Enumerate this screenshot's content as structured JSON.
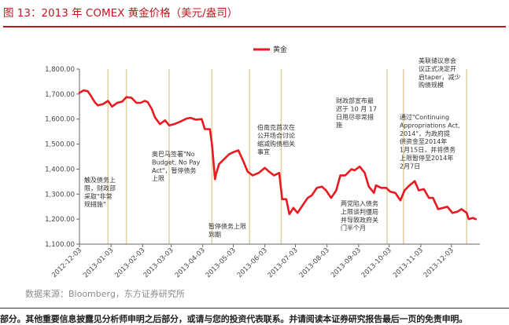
{
  "title": "图 13：2013 年 COMEX 黄金价格（美元/盎司）",
  "source": "数据来源：Bloomberg，东方证券研究所",
  "disclaimer": "部分。其他重要信息披露见分析师申明之后部分，或请与您的投资代表联系。并请阅读本证券研究报告最后一页的免责申明。",
  "colors": {
    "line": "#e8191f",
    "title": "#c0181f",
    "event_line": "#e2d2a8",
    "axis": "#666666"
  },
  "chart_data": {
    "type": "line",
    "title": "",
    "xlabel": "",
    "ylabel": "",
    "ylim": [
      1100,
      1800
    ],
    "yticks": [
      1100,
      1200,
      1300,
      1400,
      1500,
      1600,
      1700,
      1800
    ],
    "ytick_labels": [
      "1,100.00",
      "1,200.00",
      "1,300.00",
      "1,400.00",
      "1,500.00",
      "1,600.00",
      "1,700.00",
      "1,800.00"
    ],
    "xlim": [
      "2012-12-03",
      "2013-12-31"
    ],
    "xticks": [
      "2012-12-03",
      "2013-01-03",
      "2013-02-03",
      "2013-03-03",
      "2013-04-03",
      "2013-05-03",
      "2013-06-03",
      "2013-07-03",
      "2013-08-03",
      "2013-09-03",
      "2013-10-03",
      "2013-11-03",
      "2013-12-03"
    ],
    "legend": {
      "placement": "top-center",
      "label": "黄金"
    },
    "grid": false,
    "series": [
      {
        "name": "黄金",
        "x": [
          "2012-12-03",
          "2012-12-07",
          "2012-12-11",
          "2012-12-14",
          "2012-12-18",
          "2012-12-21",
          "2012-12-26",
          "2012-12-31",
          "2013-01-04",
          "2013-01-09",
          "2013-01-14",
          "2013-01-18",
          "2013-01-23",
          "2013-01-28",
          "2013-02-01",
          "2013-02-05",
          "2013-02-08",
          "2013-02-12",
          "2013-02-15",
          "2013-02-20",
          "2013-02-25",
          "2013-03-01",
          "2013-03-06",
          "2013-03-12",
          "2013-03-18",
          "2013-03-22",
          "2013-03-27",
          "2013-04-02",
          "2013-04-05",
          "2013-04-10",
          "2013-04-12",
          "2013-04-15",
          "2013-04-16",
          "2013-04-19",
          "2013-04-24",
          "2013-04-29",
          "2013-05-03",
          "2013-05-08",
          "2013-05-13",
          "2013-05-17",
          "2013-05-22",
          "2013-05-28",
          "2013-06-03",
          "2013-06-07",
          "2013-06-12",
          "2013-06-17",
          "2013-06-20",
          "2013-06-24",
          "2013-06-27",
          "2013-07-01",
          "2013-07-05",
          "2013-07-10",
          "2013-07-15",
          "2013-07-19",
          "2013-07-24",
          "2013-07-29",
          "2013-08-02",
          "2013-08-07",
          "2013-08-12",
          "2013-08-16",
          "2013-08-21",
          "2013-08-27",
          "2013-08-30",
          "2013-09-04",
          "2013-09-09",
          "2013-09-13",
          "2013-09-18",
          "2013-09-20",
          "2013-09-25",
          "2013-09-30",
          "2013-10-04",
          "2013-10-09",
          "2013-10-14",
          "2013-10-18",
          "2013-10-23",
          "2013-10-28",
          "2013-11-01",
          "2013-11-06",
          "2013-11-11",
          "2013-11-15",
          "2013-11-20",
          "2013-11-25",
          "2013-11-29",
          "2013-12-04",
          "2013-12-09",
          "2013-12-13",
          "2013-12-18",
          "2013-12-20",
          "2013-12-24",
          "2013-12-27"
        ],
        "values": [
          1705,
          1715,
          1712,
          1695,
          1668,
          1655,
          1660,
          1673,
          1650,
          1665,
          1670,
          1688,
          1685,
          1665,
          1665,
          1673,
          1668,
          1640,
          1608,
          1580,
          1595,
          1575,
          1580,
          1590,
          1602,
          1605,
          1598,
          1600,
          1560,
          1560,
          1500,
          1360,
          1380,
          1420,
          1440,
          1460,
          1468,
          1475,
          1430,
          1390,
          1375,
          1385,
          1405,
          1390,
          1375,
          1385,
          1280,
          1280,
          1220,
          1245,
          1225,
          1255,
          1285,
          1295,
          1325,
          1330,
          1315,
          1285,
          1315,
          1375,
          1375,
          1400,
          1395,
          1410,
          1385,
          1330,
          1305,
          1335,
          1325,
          1325,
          1310,
          1305,
          1275,
          1315,
          1335,
          1352,
          1315,
          1320,
          1285,
          1285,
          1240,
          1245,
          1250,
          1225,
          1230,
          1240,
          1225,
          1200,
          1205,
          1200
        ]
      }
    ],
    "event_lines": [
      "2012-12-31",
      "2013-01-18",
      "2013-03-01",
      "2013-04-12",
      "2013-05-19",
      "2013-06-19",
      "2013-10-01",
      "2013-10-17",
      "2013-12-18"
    ],
    "annotations": [
      {
        "lines": [
          "触及债务上",
          "限，财政部",
          "采取\"非常",
          "规措施\""
        ]
      },
      {
        "lines": [
          "奥巴马签署\"No",
          "Budget, No Pay",
          "Act\"，暂停债务",
          "上限"
        ]
      },
      {
        "lines": [
          "暂停债务上限",
          "到期"
        ]
      },
      {
        "lines": [
          "伯南克首次在",
          "公开场合讨论",
          "缩减购债相关",
          "事宜"
        ]
      },
      {
        "lines": [
          "财政部宣布最",
          "迟于 10 月 17",
          "日用尽非常措",
          "施"
        ]
      },
      {
        "lines": [
          "两党陷入债务",
          "上限谈判僵局",
          "并导致政府关",
          "门半个月"
        ]
      },
      {
        "lines": [
          "通过\"Continuing",
          "Appropriations Act,",
          "2014\"，为政府提",
          "供资金至2014年",
          "1月15日，并将债务",
          "上限暂停至2014年",
          "2月7日"
        ]
      },
      {
        "lines": [
          "美联储议息会",
          "议正式决定开",
          "启taper，减少",
          "购债规模"
        ]
      }
    ]
  }
}
